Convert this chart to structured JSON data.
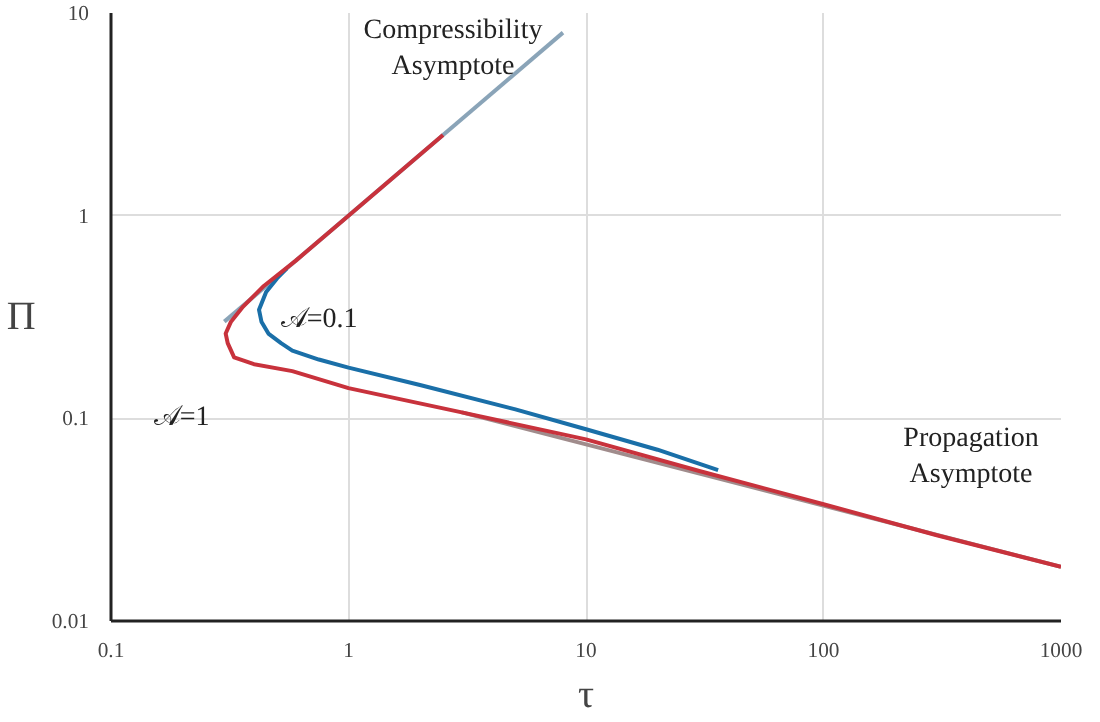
{
  "chart_data": {
    "type": "line",
    "xlabel": "τ",
    "ylabel": "Π",
    "log": "xy",
    "grid": true,
    "marker": "none",
    "line_style": "solid",
    "xlim": [
      0.1,
      1000
    ],
    "ylim": [
      0.01,
      10
    ],
    "xticks": [
      0.1,
      1,
      10,
      100,
      1000
    ],
    "yticks": [
      0.01,
      0.1,
      1,
      10
    ],
    "series": [
      {
        "name": "Compressibility Asymptote",
        "color": "#8aa4b8",
        "x": [
          0.3,
          8
        ],
        "values": [
          0.3,
          8
        ]
      },
      {
        "name": "Propagation Asymptote",
        "color": "#a08c8c",
        "x": [
          3,
          1000
        ],
        "values": [
          0.107,
          0.0185
        ]
      },
      {
        "name": "𝒜=0.1",
        "color": "#1a6fa8",
        "x": [
          0.55,
          0.5,
          0.45,
          0.42,
          0.43,
          0.46,
          0.52,
          0.58,
          0.75,
          1,
          2,
          5,
          10,
          20,
          36
        ],
        "values": [
          0.55,
          0.49,
          0.42,
          0.343,
          0.3,
          0.262,
          0.235,
          0.216,
          0.195,
          0.178,
          0.146,
          0.111,
          0.0883,
          0.07,
          0.0555
        ]
      },
      {
        "name": "𝒜=1",
        "color": "#c8323c",
        "x": [
          2.5,
          1,
          0.6,
          0.44,
          0.36,
          0.32,
          0.304,
          0.31,
          0.33,
          0.4,
          0.58,
          1,
          3,
          10,
          30,
          100,
          300,
          1000
        ],
        "values": [
          2.5,
          1,
          0.6,
          0.45,
          0.356,
          0.3,
          0.262,
          0.235,
          0.2,
          0.185,
          0.171,
          0.141,
          0.107,
          0.0787,
          0.055,
          0.0377,
          0.0265,
          0.0185
        ]
      }
    ]
  }
}
